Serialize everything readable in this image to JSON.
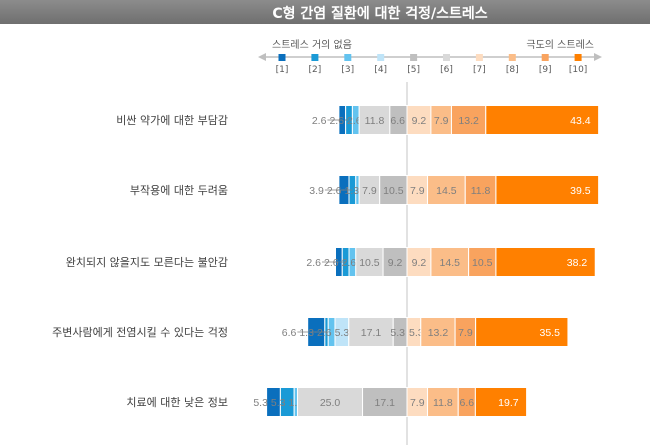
{
  "chart_data": {
    "type": "bar",
    "subtype": "diverging-stacked-horizontal",
    "title": "C형 간염 질환에 대한 걱정/스트레스",
    "scale_left_label": "스트레스 거의 없음",
    "scale_right_label": "극도의 스트레스",
    "legend": [
      "[1]",
      "[2]",
      "[3]",
      "[4]",
      "[5]",
      "[6]",
      "[7]",
      "[8]",
      "[9]",
      "[10]"
    ],
    "colors": [
      "#0a6fbd",
      "#1a9ad6",
      "#63c3ef",
      "#bfe4f8",
      "#d9d9d9",
      "#bfbfbf",
      "#fddcc0",
      "#fbbd88",
      "#f9a35e",
      "#ff8000"
    ],
    "categories": [
      "비싼 약가에 대한 부담감",
      "부작용에 대한 두려움",
      "완치되지 않을지도 모른다는 불안감",
      "주변사람에게 전염시킬 수 있다는 걱정",
      "치료에 대한 낮은 정보"
    ],
    "values": [
      [
        2.6,
        2.6,
        2.6,
        0,
        11.8,
        6.6,
        9.2,
        7.9,
        13.2,
        43.4
      ],
      [
        3.9,
        2.6,
        1.3,
        0,
        7.9,
        10.5,
        7.9,
        14.5,
        11.8,
        39.5
      ],
      [
        2.6,
        2.6,
        2.6,
        0,
        10.5,
        9.2,
        9.2,
        14.5,
        10.5,
        38.2
      ],
      [
        6.6,
        1.3,
        2.6,
        5.3,
        17.1,
        5.3,
        5.3,
        13.2,
        7.9,
        35.5
      ],
      [
        5.3,
        5.3,
        1.3,
        0,
        25.0,
        17.1,
        7.9,
        11.8,
        6.6,
        19.7
      ]
    ],
    "labels": [
      [
        "2.6",
        "2.6",
        "2.6",
        "",
        "11.8",
        "6.6",
        "9.2",
        "7.9",
        "13.2",
        "43.4"
      ],
      [
        "3.9",
        "2.6",
        "1.3",
        "",
        "7.9",
        "10.5",
        "7.9",
        "14.5",
        "11.8",
        "39.5"
      ],
      [
        "2.6",
        "2.6",
        "2.6",
        "",
        "10.5",
        "9.2",
        "9.2",
        "14.5",
        "10.5",
        "38.2"
      ],
      [
        "6.6",
        "1.3",
        "2.6",
        "5.3",
        "17.1",
        "5.3",
        "5.3",
        "13.2",
        "7.9",
        "35.5"
      ],
      [
        "5.3",
        "5.3",
        "1.3",
        "",
        "25.0",
        "17.1",
        "7.9",
        "11.8",
        "6.6",
        "19.7"
      ]
    ],
    "unit": "%",
    "center": "between [6] and [7]"
  }
}
